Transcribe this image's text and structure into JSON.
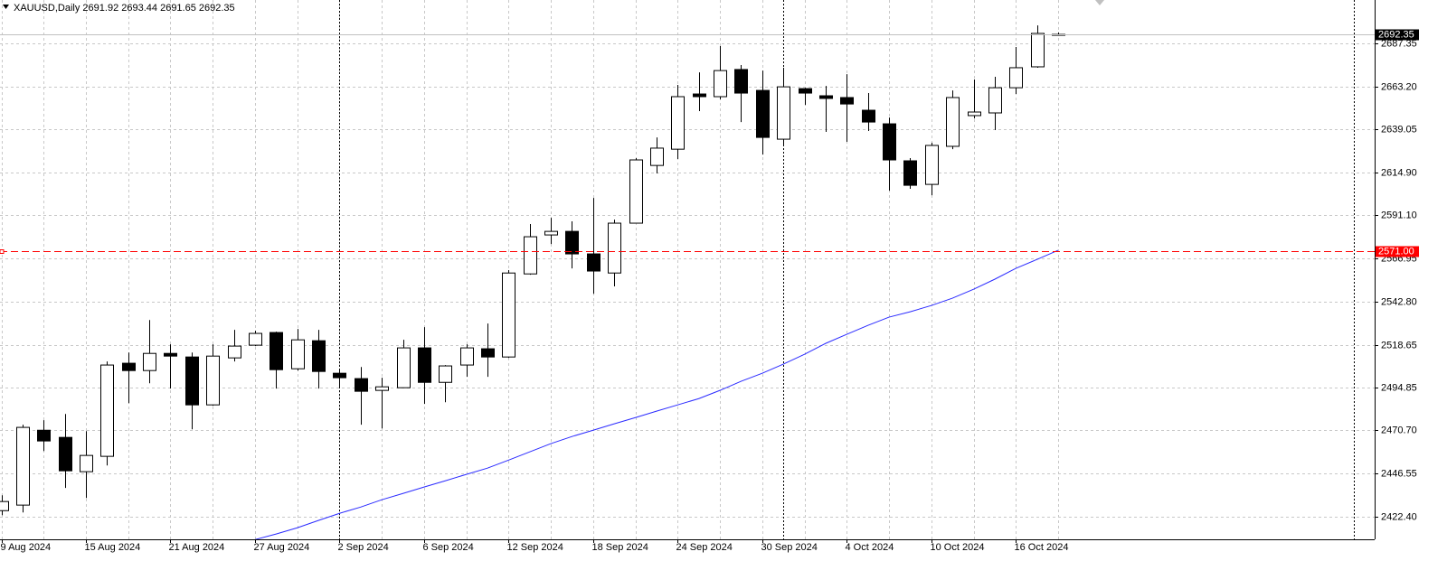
{
  "chart_data": {
    "type": "candlestick",
    "title": "XAUUSD,Daily",
    "categories": [
      "9 Aug 2024",
      null,
      null,
      null,
      "15 Aug 2024",
      null,
      null,
      null,
      "21 Aug 2024",
      null,
      null,
      null,
      "27 Aug 2024",
      null,
      null,
      null,
      "2 Sep 2024",
      null,
      null,
      null,
      "6 Sep 2024",
      null,
      null,
      null,
      "12 Sep 2024",
      null,
      null,
      null,
      "18 Sep 2024",
      null,
      null,
      null,
      "24 Sep 2024",
      null,
      null,
      null,
      "30 Sep 2024",
      null,
      null,
      null,
      "4 Oct 2024",
      null,
      null,
      null,
      "10 Oct 2024",
      null,
      null,
      null,
      "16 Oct 2024",
      null,
      null
    ],
    "open": [
      2425.8,
      2428.9,
      2470.8,
      2466.8,
      2447.6,
      2456.2,
      2508.3,
      2504.2,
      2513.8,
      2511.8,
      2485.0,
      2511.3,
      2518.4,
      2525.5,
      2505.2,
      2520.9,
      2502.7,
      2499.7,
      2493.1,
      2494.6,
      2516.9,
      2497.6,
      2507.3,
      2516.4,
      2511.8,
      2558.3,
      2580.1,
      2582.1,
      2569.5,
      2558.8,
      2586.7,
      2619.0,
      2628.1,
      2659.0,
      2657.5,
      2672.7,
      2661.0,
      2633.7,
      2662.0,
      2658.0,
      2657.0,
      2649.9,
      2642.3,
      2621.6,
      2608.4,
      2629.7,
      2646.9,
      2648.4,
      2662.5,
      2674.2,
      2691.92
    ],
    "high": [
      2434.4,
      2473.9,
      2476.4,
      2479.9,
      2470.3,
      2509.3,
      2514.3,
      2532.5,
      2518.9,
      2514.3,
      2518.9,
      2527.0,
      2526.5,
      2526.0,
      2527.5,
      2527.0,
      2505.2,
      2506.2,
      2500.2,
      2521.4,
      2528.5,
      2507.3,
      2518.9,
      2530.5,
      2560.4,
      2586.2,
      2589.7,
      2587.7,
      2600.8,
      2588.7,
      2623.1,
      2634.7,
      2664.1,
      2671.1,
      2685.8,
      2675.2,
      2672.1,
      2673.7,
      2662.5,
      2663.5,
      2670.1,
      2659.5,
      2645.8,
      2623.1,
      2631.7,
      2661.0,
      2667.1,
      2668.6,
      2685.3,
      2697.4,
      2693.44
    ],
    "low": [
      2423.3,
      2424.8,
      2459.2,
      2438.5,
      2432.9,
      2451.1,
      2486.0,
      2497.1,
      2494.1,
      2471.3,
      2484.5,
      2509.3,
      2517.9,
      2494.1,
      2504.2,
      2494.1,
      2495.1,
      2473.9,
      2471.8,
      2494.6,
      2485.5,
      2486.5,
      2500.7,
      2500.7,
      2511.3,
      2557.8,
      2575.0,
      2561.4,
      2547.2,
      2551.3,
      2586.7,
      2614.5,
      2622.6,
      2649.4,
      2656.0,
      2643.3,
      2625.1,
      2630.7,
      2652.9,
      2637.8,
      2632.2,
      2638.3,
      2604.9,
      2605.9,
      2602.3,
      2628.1,
      2645.3,
      2638.8,
      2659.0,
      2673.7,
      2691.65
    ],
    "close": [
      2430.9,
      2472.4,
      2464.8,
      2448.1,
      2456.7,
      2507.3,
      2504.2,
      2513.8,
      2512.3,
      2485.0,
      2512.3,
      2517.9,
      2525.0,
      2504.7,
      2521.4,
      2503.7,
      2500.2,
      2492.6,
      2495.1,
      2516.9,
      2497.6,
      2506.8,
      2516.9,
      2511.8,
      2558.8,
      2579.1,
      2582.1,
      2569.5,
      2559.9,
      2586.7,
      2622.1,
      2628.7,
      2657.5,
      2657.5,
      2672.1,
      2659.5,
      2634.7,
      2663.0,
      2659.5,
      2656.5,
      2653.4,
      2643.3,
      2622.1,
      2607.9,
      2630.2,
      2657.0,
      2648.9,
      2662.5,
      2673.7,
      2692.9,
      2692.35
    ],
    "up_color": "#ffffff",
    "down_color": "#000000",
    "overlay": {
      "color": "#2a2aff",
      "values": [
        null,
        null,
        null,
        null,
        null,
        null,
        null,
        null,
        null,
        null,
        null,
        null,
        2409.6,
        2412.7,
        2416.2,
        2420.3,
        2424.3,
        2427.8,
        2431.9,
        2435.4,
        2439.0,
        2442.5,
        2446.1,
        2449.6,
        2454.1,
        2458.7,
        2463.3,
        2467.3,
        2470.8,
        2474.4,
        2477.9,
        2481.5,
        2485.0,
        2488.5,
        2493.1,
        2498.2,
        2502.7,
        2507.8,
        2513.3,
        2519.4,
        2524.5,
        2529.5,
        2534.1,
        2537.1,
        2540.6,
        2544.7,
        2549.7,
        2555.3,
        2561.4,
        2566.4,
        2571.5
      ]
    },
    "hline": {
      "value": 2571,
      "label": "2571.00",
      "color": "#ff0000"
    },
    "ylim": [
      2409.75,
      2711.6
    ],
    "yticks": [
      {
        "value": 2422.4,
        "label": "2422.40"
      },
      2446.55,
      {
        "value": 2470.7,
        "label": "2470.70"
      },
      2494.85,
      2518.65,
      {
        "value": 2542.8,
        "label": "2542.80"
      },
      2566.95,
      {
        "value": 2591.1,
        "label": "2591.10"
      },
      {
        "value": 2614.9,
        "label": "2614.90"
      },
      2639.05,
      {
        "value": 2663.2,
        "label": "2663.20"
      },
      2687.35
    ],
    "grid": true
  }
}
